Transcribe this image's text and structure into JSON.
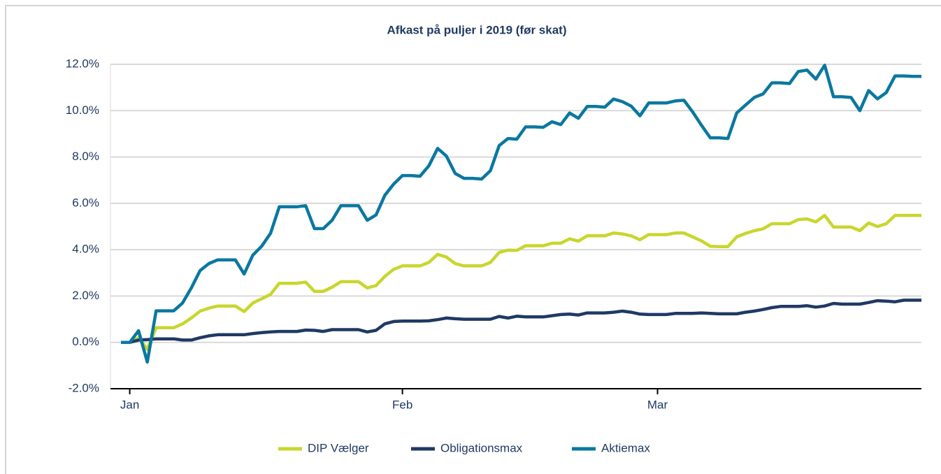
{
  "chart_data": {
    "type": "line",
    "title": "Afkast på puljer i 2019 (før skat)",
    "categories": [
      null,
      "Jan",
      null,
      null,
      null,
      null,
      null,
      null,
      null,
      null,
      null,
      null,
      null,
      null,
      null,
      null,
      null,
      null,
      null,
      null,
      null,
      null,
      null,
      null,
      null,
      null,
      null,
      null,
      null,
      null,
      null,
      null,
      "Feb",
      null,
      null,
      null,
      null,
      null,
      null,
      null,
      null,
      null,
      null,
      null,
      null,
      null,
      null,
      null,
      null,
      null,
      null,
      null,
      null,
      null,
      null,
      null,
      null,
      null,
      null,
      null,
      null,
      "Mar",
      null,
      null,
      null,
      null,
      null,
      null,
      null,
      null,
      null,
      null,
      null,
      null,
      null,
      null,
      null,
      null,
      null,
      null,
      null,
      null,
      null,
      null,
      null,
      null,
      null,
      null,
      null,
      null,
      null,
      null
    ],
    "series": [
      {
        "name": "DIP Vælger",
        "color": "#c8d62e",
        "values": [
          0,
          0,
          0.2,
          -0.3,
          0.63,
          0.63,
          0.63,
          0.8,
          1.05,
          1.35,
          1.48,
          1.57,
          1.57,
          1.57,
          1.33,
          1.7,
          1.88,
          2.07,
          2.55,
          2.55,
          2.55,
          2.6,
          2.2,
          2.2,
          2.38,
          2.62,
          2.62,
          2.62,
          2.35,
          2.45,
          2.85,
          3.15,
          3.3,
          3.3,
          3.3,
          3.45,
          3.8,
          3.68,
          3.4,
          3.3,
          3.3,
          3.3,
          3.45,
          3.88,
          3.98,
          3.97,
          4.17,
          4.17,
          4.17,
          4.28,
          4.28,
          4.47,
          4.37,
          4.6,
          4.6,
          4.6,
          4.72,
          4.68,
          4.6,
          4.43,
          4.65,
          4.65,
          4.65,
          4.72,
          4.72,
          4.55,
          4.38,
          4.15,
          4.13,
          4.13,
          4.55,
          4.7,
          4.82,
          4.9,
          5.12,
          5.12,
          5.12,
          5.3,
          5.33,
          5.2,
          5.48,
          4.98,
          4.98,
          4.98,
          4.82,
          5.15,
          5.0,
          5.12,
          5.48,
          5.48,
          5.48,
          5.48
        ]
      },
      {
        "name": "Obligationsmax",
        "color": "#1f3a63",
        "values": [
          0,
          0,
          0.1,
          0.12,
          0.15,
          0.15,
          0.15,
          0.1,
          0.1,
          0.2,
          0.28,
          0.33,
          0.33,
          0.33,
          0.33,
          0.38,
          0.42,
          0.45,
          0.47,
          0.47,
          0.47,
          0.53,
          0.52,
          0.47,
          0.55,
          0.55,
          0.55,
          0.55,
          0.45,
          0.52,
          0.8,
          0.9,
          0.92,
          0.92,
          0.92,
          0.93,
          0.98,
          1.05,
          1.02,
          1.0,
          1.0,
          1.0,
          1.0,
          1.12,
          1.05,
          1.13,
          1.1,
          1.1,
          1.1,
          1.15,
          1.2,
          1.22,
          1.18,
          1.27,
          1.27,
          1.27,
          1.3,
          1.35,
          1.3,
          1.22,
          1.2,
          1.2,
          1.2,
          1.25,
          1.25,
          1.25,
          1.27,
          1.25,
          1.23,
          1.23,
          1.23,
          1.3,
          1.35,
          1.42,
          1.5,
          1.55,
          1.55,
          1.55,
          1.58,
          1.52,
          1.57,
          1.68,
          1.65,
          1.65,
          1.65,
          1.72,
          1.8,
          1.78,
          1.75,
          1.82,
          1.82,
          1.82
        ]
      },
      {
        "name": "Aktiemax",
        "color": "#0a78a0",
        "values": [
          0,
          0,
          0.5,
          -0.85,
          1.36,
          1.36,
          1.36,
          1.7,
          2.35,
          3.1,
          3.4,
          3.56,
          3.56,
          3.56,
          2.95,
          3.77,
          4.15,
          4.7,
          5.85,
          5.85,
          5.85,
          5.9,
          4.91,
          4.91,
          5.27,
          5.9,
          5.9,
          5.9,
          5.27,
          5.5,
          6.35,
          6.83,
          7.2,
          7.2,
          7.17,
          7.62,
          8.37,
          8.04,
          7.29,
          7.08,
          7.08,
          7.05,
          7.41,
          8.49,
          8.8,
          8.77,
          9.3,
          9.3,
          9.28,
          9.52,
          9.4,
          9.9,
          9.67,
          10.18,
          10.18,
          10.15,
          10.5,
          10.39,
          10.2,
          9.78,
          10.33,
          10.33,
          10.33,
          10.42,
          10.45,
          9.94,
          9.37,
          8.83,
          8.83,
          8.8,
          9.9,
          10.24,
          10.57,
          10.72,
          11.2,
          11.2,
          11.17,
          11.69,
          11.75,
          11.36,
          11.96,
          10.6,
          10.6,
          10.57,
          10.0,
          10.87,
          10.51,
          10.78,
          11.5,
          11.5,
          11.48,
          11.48
        ]
      }
    ],
    "ylim": [
      -2,
      12
    ],
    "yticks": [
      {
        "value": -2,
        "label": "-2.0%"
      },
      {
        "value": 0,
        "label": "0.0%"
      },
      {
        "value": 2,
        "label": "2.0%"
      },
      {
        "value": 4,
        "label": "4.0%"
      },
      {
        "value": 6,
        "label": "6.0%"
      },
      {
        "value": 8,
        "label": "8.0%"
      },
      {
        "value": 10,
        "label": "10.0%"
      },
      {
        "value": 12,
        "label": "12.0%"
      }
    ],
    "grid": true,
    "legend": "bottom"
  }
}
